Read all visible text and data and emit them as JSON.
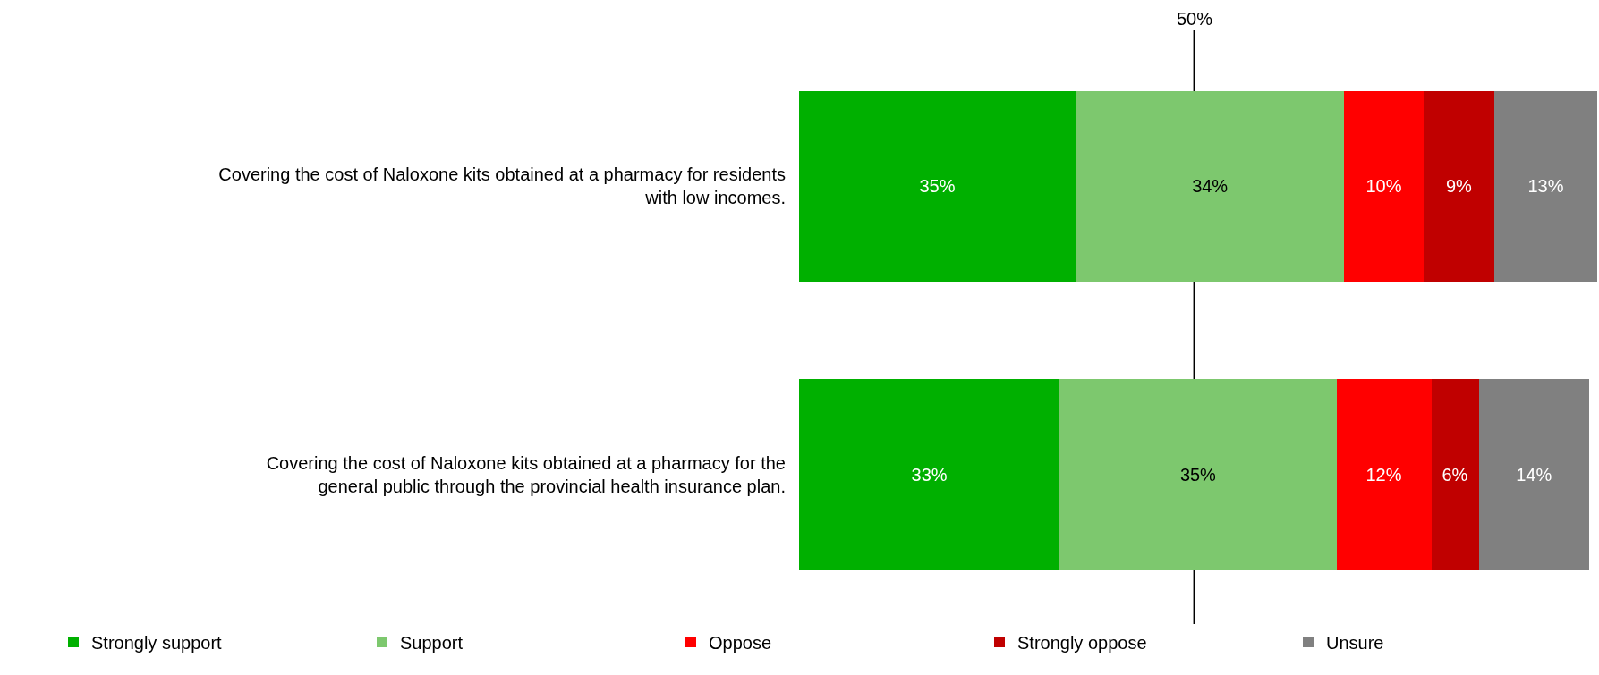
{
  "chart_data": {
    "type": "bar",
    "orientation": "horizontal",
    "stacked": true,
    "legend": "bottom",
    "categories": [
      "Covering the cost of Naloxone kits obtained at a pharmacy for residents with low incomes.",
      "Covering the cost of Naloxone kits obtained at a pharmacy for the general public through the provincial health insurance plan."
    ],
    "series": [
      {
        "name": "Strongly support",
        "color": "#00b000",
        "values": [
          35,
          33
        ],
        "value_labels": [
          "35%",
          "33%"
        ]
      },
      {
        "name": "Support",
        "color": "#7dc86e",
        "values": [
          34,
          35
        ],
        "value_labels": [
          "34%",
          "35%"
        ]
      },
      {
        "name": "Oppose",
        "color": "#ff0000",
        "values": [
          10,
          12
        ],
        "value_labels": [
          "10%",
          "12%"
        ]
      },
      {
        "name": "Strongly oppose",
        "color": "#c00000",
        "values": [
          9,
          6
        ],
        "value_labels": [
          "9%",
          "6%"
        ]
      },
      {
        "name": "Unsure",
        "color": "#808080",
        "values": [
          13,
          14
        ],
        "value_labels": [
          "13%",
          "14%"
        ]
      }
    ],
    "ref_lines": [
      {
        "axis": "x",
        "value": 50,
        "label": "50%",
        "color": "#000000"
      }
    ]
  }
}
